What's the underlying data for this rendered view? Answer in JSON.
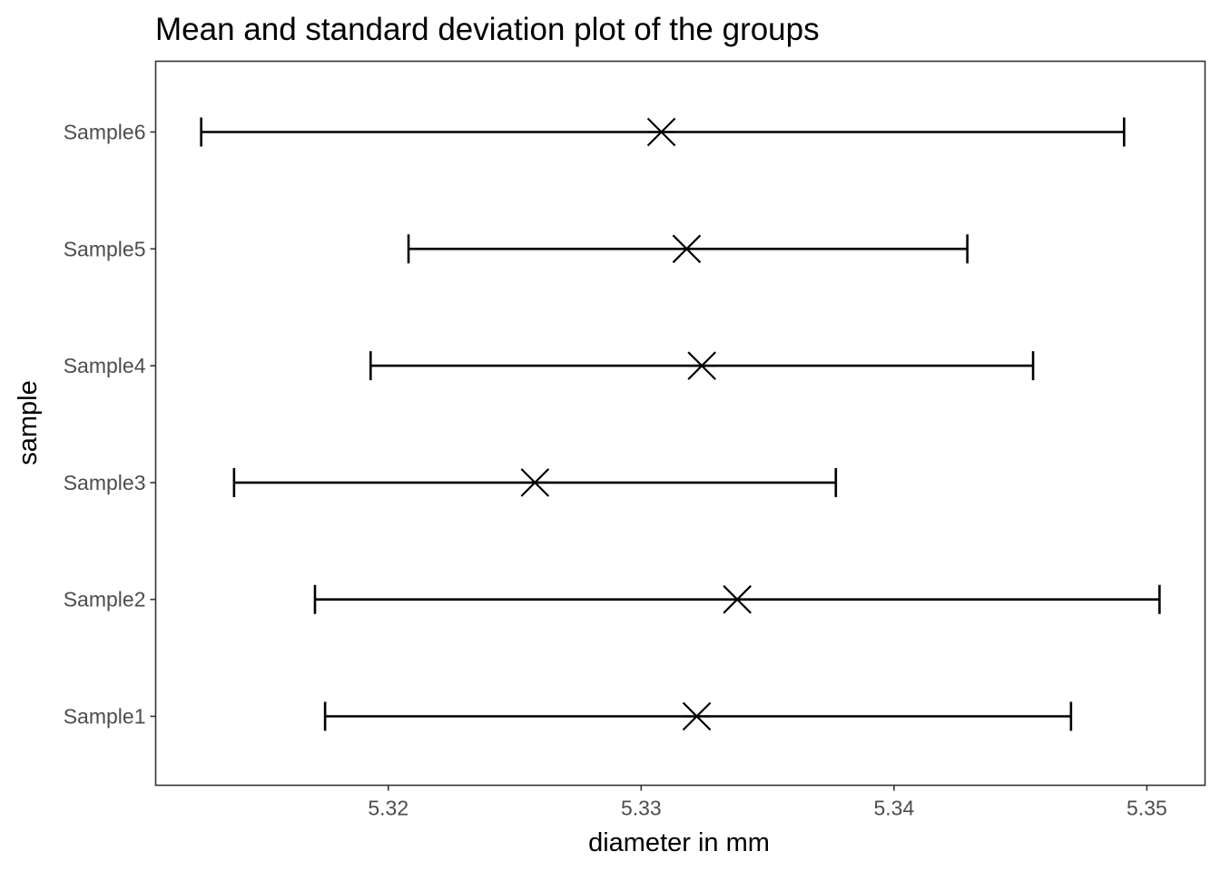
{
  "chart_data": {
    "type": "errorbar",
    "title": "Mean and standard deviation plot of the groups",
    "xlabel": "diameter in mm",
    "ylabel": "sample",
    "xlim": [
      5.3108,
      5.3523
    ],
    "x_ticks": [
      5.32,
      5.33,
      5.34,
      5.35
    ],
    "x_tick_labels": [
      "5.32",
      "5.33",
      "5.34",
      "5.35"
    ],
    "categories": [
      "Sample1",
      "Sample2",
      "Sample3",
      "Sample4",
      "Sample5",
      "Sample6"
    ],
    "series": [
      {
        "means": [
          5.3322,
          5.3338,
          5.3258,
          5.3324,
          5.3318,
          5.3308
        ],
        "lower": [
          5.3175,
          5.3171,
          5.3139,
          5.3193,
          5.3208,
          5.3126
        ],
        "upper": [
          5.347,
          5.3505,
          5.3377,
          5.3455,
          5.3429,
          5.3491
        ]
      }
    ],
    "marker": "asterisk",
    "grid": false,
    "legend": "none",
    "colors": {
      "line": "#000000",
      "panel_border": "#333333",
      "tick_text": "#4d4d4d",
      "background": "#ffffff"
    }
  }
}
